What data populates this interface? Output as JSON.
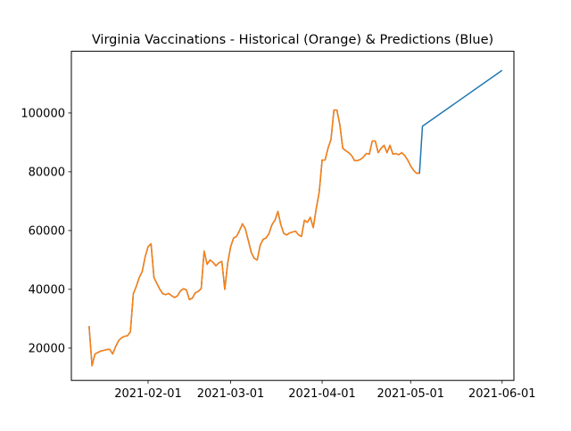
{
  "chart_data": {
    "type": "line",
    "title": "Virginia Vaccinations - Historical (Orange) & Predictions (Blue)",
    "xlabel": "",
    "ylabel": "",
    "grid": false,
    "legend": "none",
    "xlim": [
      "2021-01-06",
      "2021-06-05"
    ],
    "ylim": [
      9000,
      121000
    ],
    "x_ticks": [
      "2021-02-01",
      "2021-03-01",
      "2021-04-01",
      "2021-05-01",
      "2021-06-01"
    ],
    "y_ticks": [
      20000,
      40000,
      60000,
      80000,
      100000
    ],
    "series": [
      {
        "color": "#1f77b4",
        "points": [
          [
            "2021-01-12",
            27500
          ],
          [
            "2021-01-13",
            14000
          ],
          [
            "2021-01-14",
            18000
          ],
          [
            "2021-01-15",
            18500
          ],
          [
            "2021-01-16",
            19000
          ],
          [
            "2021-01-17",
            19200
          ],
          [
            "2021-01-18",
            19500
          ],
          [
            "2021-01-19",
            19600
          ],
          [
            "2021-01-20",
            18000
          ],
          [
            "2021-01-21",
            20500
          ],
          [
            "2021-01-22",
            22500
          ],
          [
            "2021-01-23",
            23500
          ],
          [
            "2021-01-24",
            24000
          ],
          [
            "2021-01-25",
            24200
          ],
          [
            "2021-01-26",
            25500
          ],
          [
            "2021-01-27",
            38500
          ],
          [
            "2021-01-28",
            41000
          ],
          [
            "2021-01-29",
            44000
          ],
          [
            "2021-01-30",
            46000
          ],
          [
            "2021-01-31",
            51000
          ],
          [
            "2021-02-01",
            54500
          ],
          [
            "2021-02-02",
            55500
          ],
          [
            "2021-02-03",
            44000
          ],
          [
            "2021-02-04",
            42000
          ],
          [
            "2021-02-05",
            40000
          ],
          [
            "2021-02-06",
            38500
          ],
          [
            "2021-02-07",
            38200
          ],
          [
            "2021-02-08",
            38600
          ],
          [
            "2021-02-09",
            37800
          ],
          [
            "2021-02-10",
            37200
          ],
          [
            "2021-02-11",
            37800
          ],
          [
            "2021-02-12",
            39500
          ],
          [
            "2021-02-13",
            40200
          ],
          [
            "2021-02-14",
            39800
          ],
          [
            "2021-02-15",
            36500
          ],
          [
            "2021-02-16",
            37000
          ],
          [
            "2021-02-17",
            38800
          ],
          [
            "2021-02-18",
            39300
          ],
          [
            "2021-02-19",
            40200
          ],
          [
            "2021-02-20",
            53000
          ],
          [
            "2021-02-21",
            48500
          ],
          [
            "2021-02-22",
            50000
          ],
          [
            "2021-02-23",
            49200
          ],
          [
            "2021-02-24",
            48000
          ],
          [
            "2021-02-25",
            49000
          ],
          [
            "2021-02-26",
            49500
          ],
          [
            "2021-02-27",
            40000
          ],
          [
            "2021-02-28",
            49000
          ],
          [
            "2021-03-01",
            54500
          ],
          [
            "2021-03-02",
            57500
          ],
          [
            "2021-03-03",
            58000
          ],
          [
            "2021-03-04",
            60000
          ],
          [
            "2021-03-05",
            62300
          ],
          [
            "2021-03-06",
            60500
          ],
          [
            "2021-03-07",
            56500
          ],
          [
            "2021-03-08",
            52500
          ],
          [
            "2021-03-09",
            50500
          ],
          [
            "2021-03-10",
            50000
          ],
          [
            "2021-03-11",
            55000
          ],
          [
            "2021-03-12",
            57000
          ],
          [
            "2021-03-13",
            57500
          ],
          [
            "2021-03-14",
            59000
          ],
          [
            "2021-03-15",
            62000
          ],
          [
            "2021-03-16",
            63500
          ],
          [
            "2021-03-17",
            66500
          ],
          [
            "2021-03-18",
            62000
          ],
          [
            "2021-03-19",
            59000
          ],
          [
            "2021-03-20",
            58500
          ],
          [
            "2021-03-21",
            59200
          ],
          [
            "2021-03-22",
            59500
          ],
          [
            "2021-03-23",
            59800
          ],
          [
            "2021-03-24",
            58500
          ],
          [
            "2021-03-25",
            58000
          ],
          [
            "2021-03-26",
            63500
          ],
          [
            "2021-03-27",
            62800
          ],
          [
            "2021-03-28",
            64500
          ],
          [
            "2021-03-29",
            61000
          ],
          [
            "2021-03-30",
            67500
          ],
          [
            "2021-03-31",
            73000
          ],
          [
            "2021-04-01",
            84000
          ],
          [
            "2021-04-02",
            84000
          ],
          [
            "2021-04-03",
            88000
          ],
          [
            "2021-04-04",
            91000
          ],
          [
            "2021-04-05",
            101000
          ],
          [
            "2021-04-06",
            101000
          ],
          [
            "2021-04-07",
            96000
          ],
          [
            "2021-04-08",
            88000
          ],
          [
            "2021-04-09",
            87200
          ],
          [
            "2021-04-10",
            86500
          ],
          [
            "2021-04-11",
            85500
          ],
          [
            "2021-04-12",
            83800
          ],
          [
            "2021-04-13",
            83800
          ],
          [
            "2021-04-14",
            84200
          ],
          [
            "2021-04-15",
            85000
          ],
          [
            "2021-04-16",
            86200
          ],
          [
            "2021-04-17",
            86000
          ],
          [
            "2021-04-18",
            90500
          ],
          [
            "2021-04-19",
            90500
          ],
          [
            "2021-04-20",
            86500
          ],
          [
            "2021-04-21",
            88000
          ],
          [
            "2021-04-22",
            89000
          ],
          [
            "2021-04-23",
            86500
          ],
          [
            "2021-04-24",
            89000
          ],
          [
            "2021-04-25",
            86000
          ],
          [
            "2021-04-26",
            86200
          ],
          [
            "2021-04-27",
            85800
          ],
          [
            "2021-04-28",
            86500
          ],
          [
            "2021-04-29",
            85500
          ],
          [
            "2021-04-30",
            84000
          ],
          [
            "2021-05-01",
            82000
          ],
          [
            "2021-05-02",
            80500
          ],
          [
            "2021-05-03",
            79500
          ],
          [
            "2021-05-04",
            79500
          ],
          [
            "2021-05-05",
            95500
          ],
          [
            "2021-06-01",
            114500
          ]
        ]
      },
      {
        "color": "#ff7f0e",
        "points": [
          [
            "2021-01-12",
            27500
          ],
          [
            "2021-01-13",
            14000
          ],
          [
            "2021-01-14",
            18000
          ],
          [
            "2021-01-15",
            18500
          ],
          [
            "2021-01-16",
            19000
          ],
          [
            "2021-01-17",
            19200
          ],
          [
            "2021-01-18",
            19500
          ],
          [
            "2021-01-19",
            19600
          ],
          [
            "2021-01-20",
            18000
          ],
          [
            "2021-01-21",
            20500
          ],
          [
            "2021-01-22",
            22500
          ],
          [
            "2021-01-23",
            23500
          ],
          [
            "2021-01-24",
            24000
          ],
          [
            "2021-01-25",
            24200
          ],
          [
            "2021-01-26",
            25500
          ],
          [
            "2021-01-27",
            38500
          ],
          [
            "2021-01-28",
            41000
          ],
          [
            "2021-01-29",
            44000
          ],
          [
            "2021-01-30",
            46000
          ],
          [
            "2021-01-31",
            51000
          ],
          [
            "2021-02-01",
            54500
          ],
          [
            "2021-02-02",
            55500
          ],
          [
            "2021-02-03",
            44000
          ],
          [
            "2021-02-04",
            42000
          ],
          [
            "2021-02-05",
            40000
          ],
          [
            "2021-02-06",
            38500
          ],
          [
            "2021-02-07",
            38200
          ],
          [
            "2021-02-08",
            38600
          ],
          [
            "2021-02-09",
            37800
          ],
          [
            "2021-02-10",
            37200
          ],
          [
            "2021-02-11",
            37800
          ],
          [
            "2021-02-12",
            39500
          ],
          [
            "2021-02-13",
            40200
          ],
          [
            "2021-02-14",
            39800
          ],
          [
            "2021-02-15",
            36500
          ],
          [
            "2021-02-16",
            37000
          ],
          [
            "2021-02-17",
            38800
          ],
          [
            "2021-02-18",
            39300
          ],
          [
            "2021-02-19",
            40200
          ],
          [
            "2021-02-20",
            53000
          ],
          [
            "2021-02-21",
            48500
          ],
          [
            "2021-02-22",
            50000
          ],
          [
            "2021-02-23",
            49200
          ],
          [
            "2021-02-24",
            48000
          ],
          [
            "2021-02-25",
            49000
          ],
          [
            "2021-02-26",
            49500
          ],
          [
            "2021-02-27",
            40000
          ],
          [
            "2021-02-28",
            49000
          ],
          [
            "2021-03-01",
            54500
          ],
          [
            "2021-03-02",
            57500
          ],
          [
            "2021-03-03",
            58000
          ],
          [
            "2021-03-04",
            60000
          ],
          [
            "2021-03-05",
            62300
          ],
          [
            "2021-03-06",
            60500
          ],
          [
            "2021-03-07",
            56500
          ],
          [
            "2021-03-08",
            52500
          ],
          [
            "2021-03-09",
            50500
          ],
          [
            "2021-03-10",
            50000
          ],
          [
            "2021-03-11",
            55000
          ],
          [
            "2021-03-12",
            57000
          ],
          [
            "2021-03-13",
            57500
          ],
          [
            "2021-03-14",
            59000
          ],
          [
            "2021-03-15",
            62000
          ],
          [
            "2021-03-16",
            63500
          ],
          [
            "2021-03-17",
            66500
          ],
          [
            "2021-03-18",
            62000
          ],
          [
            "2021-03-19",
            59000
          ],
          [
            "2021-03-20",
            58500
          ],
          [
            "2021-03-21",
            59200
          ],
          [
            "2021-03-22",
            59500
          ],
          [
            "2021-03-23",
            59800
          ],
          [
            "2021-03-24",
            58500
          ],
          [
            "2021-03-25",
            58000
          ],
          [
            "2021-03-26",
            63500
          ],
          [
            "2021-03-27",
            62800
          ],
          [
            "2021-03-28",
            64500
          ],
          [
            "2021-03-29",
            61000
          ],
          [
            "2021-03-30",
            67500
          ],
          [
            "2021-03-31",
            73000
          ],
          [
            "2021-04-01",
            84000
          ],
          [
            "2021-04-02",
            84000
          ],
          [
            "2021-04-03",
            88000
          ],
          [
            "2021-04-04",
            91000
          ],
          [
            "2021-04-05",
            101000
          ],
          [
            "2021-04-06",
            101000
          ],
          [
            "2021-04-07",
            96000
          ],
          [
            "2021-04-08",
            88000
          ],
          [
            "2021-04-09",
            87200
          ],
          [
            "2021-04-10",
            86500
          ],
          [
            "2021-04-11",
            85500
          ],
          [
            "2021-04-12",
            83800
          ],
          [
            "2021-04-13",
            83800
          ],
          [
            "2021-04-14",
            84200
          ],
          [
            "2021-04-15",
            85000
          ],
          [
            "2021-04-16",
            86200
          ],
          [
            "2021-04-17",
            86000
          ],
          [
            "2021-04-18",
            90500
          ],
          [
            "2021-04-19",
            90500
          ],
          [
            "2021-04-20",
            86500
          ],
          [
            "2021-04-21",
            88000
          ],
          [
            "2021-04-22",
            89000
          ],
          [
            "2021-04-23",
            86500
          ],
          [
            "2021-04-24",
            89000
          ],
          [
            "2021-04-25",
            86000
          ],
          [
            "2021-04-26",
            86200
          ],
          [
            "2021-04-27",
            85800
          ],
          [
            "2021-04-28",
            86500
          ],
          [
            "2021-04-29",
            85500
          ],
          [
            "2021-04-30",
            84000
          ],
          [
            "2021-05-01",
            82000
          ],
          [
            "2021-05-02",
            80500
          ],
          [
            "2021-05-03",
            79500
          ],
          [
            "2021-05-04",
            79500
          ]
        ]
      }
    ]
  }
}
